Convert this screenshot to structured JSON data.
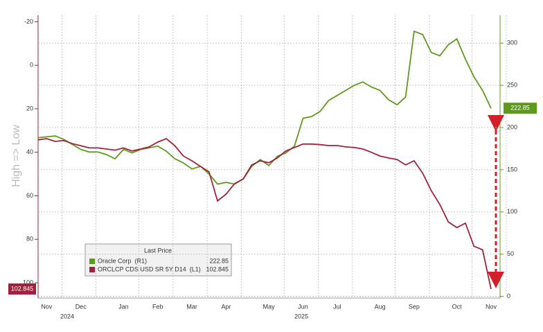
{
  "chart_data": {
    "type": "line",
    "y_label": "High => Low",
    "y_inverted": true,
    "ylim": [
      -23,
      107
    ],
    "yticks": [
      -20,
      0,
      20,
      40,
      60,
      80,
      100
    ],
    "y2lim": [
      -2,
      333
    ],
    "y2ticks": [
      0,
      50,
      100,
      150,
      200,
      250,
      300
    ],
    "grid": true,
    "categories": [
      null,
      "Nov",
      null,
      null,
      null,
      "Dec",
      null,
      null,
      null,
      null,
      "Jan",
      null,
      null,
      null,
      "Feb",
      null,
      null,
      null,
      "Mar",
      null,
      null,
      null,
      "Apr",
      null,
      null,
      null,
      null,
      "May",
      null,
      null,
      null,
      "Jun",
      null,
      null,
      null,
      "Jul",
      null,
      null,
      null,
      null,
      "Aug",
      null,
      null,
      null,
      "Sep",
      null,
      null,
      null,
      null,
      "Oct",
      null,
      null,
      null,
      "Nov"
    ],
    "year_labels": [
      "2024",
      "2025"
    ],
    "legend_title": "Last Price",
    "series": [
      {
        "name": "Oracle Corp  (R1)",
        "color": "#5c9a1c",
        "axis": "y2",
        "values": [
          188,
          189,
          190,
          186,
          180,
          174,
          171,
          171,
          168,
          163,
          174,
          170,
          174,
          176,
          178,
          172,
          163,
          158,
          151,
          154,
          145,
          133,
          135,
          133,
          139,
          154,
          162,
          155,
          166,
          170,
          178,
          211,
          213,
          219,
          232,
          238,
          244,
          250,
          254,
          248,
          244,
          233,
          227,
          236,
          314,
          310,
          289,
          285,
          298,
          305,
          281,
          260,
          244,
          222.85
        ]
      },
      {
        "name": "ORCLCP CDS USD SR 5Y D14  (L1)",
        "color": "#a3203c",
        "axis": "y",
        "values": [
          34.3,
          33.7,
          35,
          34.6,
          36,
          37,
          38,
          38,
          38.5,
          39,
          38,
          39.4,
          38.5,
          37.5,
          35.3,
          33.7,
          37,
          41.7,
          43.9,
          46.5,
          49,
          62.4,
          59.2,
          54.4,
          52.2,
          45.8,
          43.9,
          44.8,
          42.6,
          39.4,
          37.8,
          36.2,
          36.2,
          36.5,
          36.9,
          36.9,
          37.5,
          37.8,
          38.5,
          40,
          41.7,
          42.6,
          43.3,
          45.8,
          43.9,
          49.6,
          57.6,
          64,
          72,
          74.6,
          72.6,
          83.2,
          84.8,
          102.845
        ]
      }
    ]
  }
}
